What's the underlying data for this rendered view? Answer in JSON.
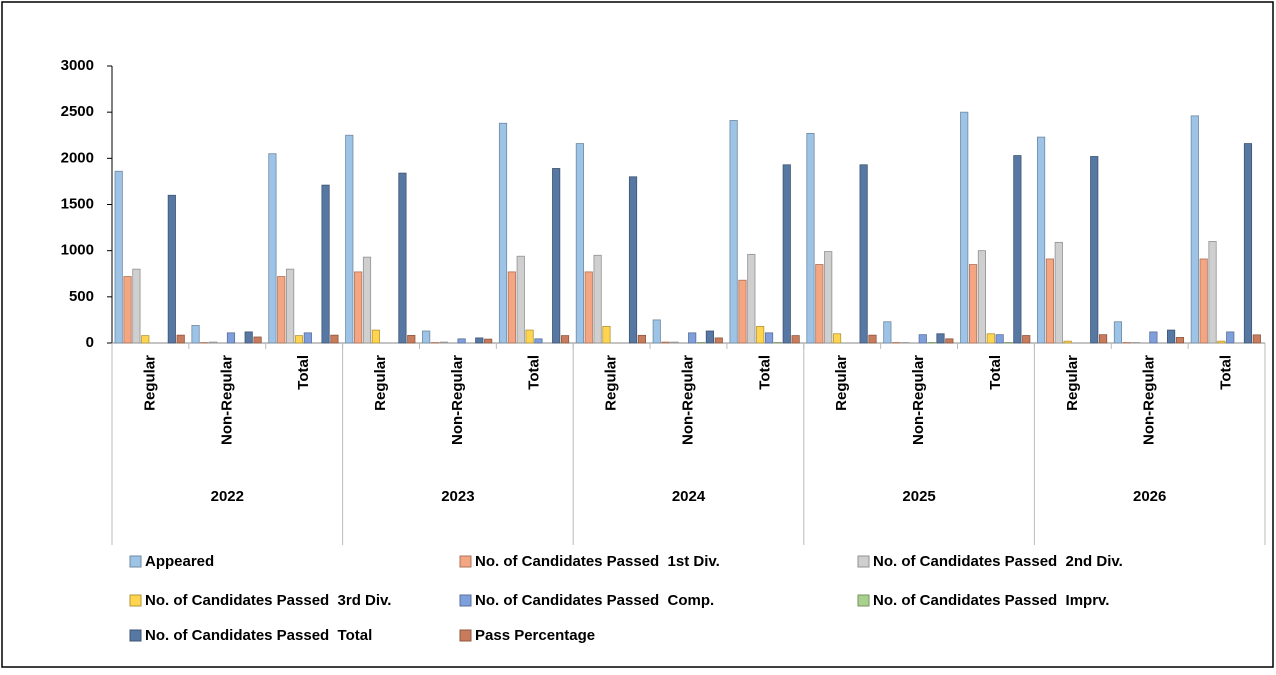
{
  "chart_data": {
    "type": "bar",
    "categories": [
      "Regular",
      "Non-Regular",
      "Total",
      "Regular",
      "Non-Regular",
      "Total",
      "Regular",
      "Non-Regular",
      "Total",
      "Regular",
      "Non-Regular",
      "Total",
      "Regular",
      "Non-Regular",
      "Total"
    ],
    "groups": [
      "2022",
      "2023",
      "2024",
      "2025",
      "2026"
    ],
    "series": [
      {
        "name": "Appeared",
        "color": "#9dc3e6",
        "values": [
          1860,
          190,
          2050,
          2250,
          130,
          2380,
          2160,
          250,
          2410,
          2270,
          230,
          2500,
          2230,
          230,
          2460
        ]
      },
      {
        "name": "No. of Candidates Passed  1st Div.",
        "color": "#f4a582",
        "values": [
          720,
          5,
          720,
          770,
          5,
          770,
          770,
          10,
          680,
          850,
          5,
          850,
          910,
          5,
          910
        ]
      },
      {
        "name": "No. of Candidates Passed  2nd Div.",
        "color": "#cfcfcf",
        "values": [
          800,
          10,
          800,
          930,
          10,
          940,
          950,
          10,
          960,
          990,
          5,
          1000,
          1090,
          5,
          1100
        ]
      },
      {
        "name": "No. of Candidates Passed  3rd Div.",
        "color": "#ffd54f",
        "values": [
          80,
          0,
          80,
          140,
          0,
          140,
          180,
          0,
          180,
          100,
          0,
          100,
          20,
          0,
          20
        ]
      },
      {
        "name": "No. of Candidates Passed  Comp.",
        "color": "#7f9fdc",
        "values": [
          0,
          110,
          110,
          0,
          45,
          45,
          0,
          110,
          110,
          0,
          90,
          90,
          0,
          120,
          120
        ]
      },
      {
        "name": "No. of Candidates Passed  Imprv.",
        "color": "#a9d18e",
        "values": [
          0,
          0,
          0,
          0,
          0,
          0,
          0,
          5,
          5,
          0,
          5,
          5,
          0,
          0,
          0
        ]
      },
      {
        "name": "No. of Candidates Passed  Total",
        "color": "#5878a4",
        "values": [
          1600,
          120,
          1710,
          1840,
          55,
          1890,
          1800,
          130,
          1930,
          1930,
          100,
          2030,
          2020,
          140,
          2160
        ]
      },
      {
        "name": "Pass Percentage",
        "color": "#c87c5c",
        "values": [
          85,
          65,
          85,
          82,
          42,
          80,
          83,
          55,
          80,
          85,
          45,
          81,
          90,
          60,
          88
        ]
      }
    ],
    "ylim": [
      0,
      3000
    ],
    "yticks": [
      0,
      500,
      1000,
      1500,
      2000,
      2500,
      3000
    ],
    "grid": false,
    "legend": "bottom"
  }
}
